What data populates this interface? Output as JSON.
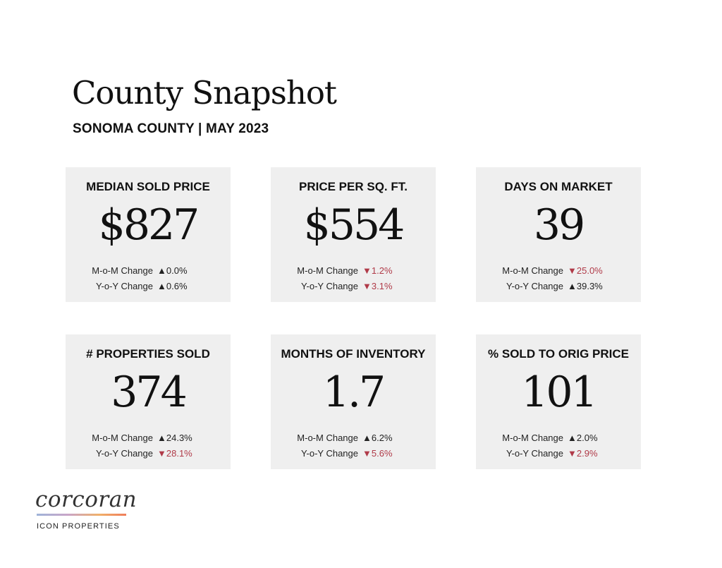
{
  "header": {
    "title": "County Snapshot",
    "subtitle": "SONOMA COUNTY | MAY 2023"
  },
  "cards": [
    {
      "label": "MEDIAN SOLD PRICE",
      "value": "$827",
      "mom_label": "M-o-M Change",
      "mom_value": "▲0.0%",
      "mom_direction": "up",
      "yoy_label": "Y-o-Y Change",
      "yoy_value": "▲0.6%",
      "yoy_direction": "up"
    },
    {
      "label": "PRICE PER SQ. FT.",
      "value": "$554",
      "mom_label": "M-o-M Change",
      "mom_value": "▼1.2%",
      "mom_direction": "down",
      "yoy_label": "Y-o-Y Change",
      "yoy_value": "▼3.1%",
      "yoy_direction": "down"
    },
    {
      "label": "DAYS ON MARKET",
      "value": "39",
      "mom_label": "M-o-M Change",
      "mom_value": "▼25.0%",
      "mom_direction": "down",
      "yoy_label": "Y-o-Y Change",
      "yoy_value": "▲39.3%",
      "yoy_direction": "up"
    },
    {
      "label": "# PROPERTIES SOLD",
      "value": "374",
      "mom_label": "M-o-M Change",
      "mom_value": "▲24.3%",
      "mom_direction": "up",
      "yoy_label": "Y-o-Y Change",
      "yoy_value": "▼28.1%",
      "yoy_direction": "down"
    },
    {
      "label": "MONTHS OF INVENTORY",
      "value": "1.7",
      "mom_label": "M-o-M Change",
      "mom_value": "▲6.2%",
      "mom_direction": "up",
      "yoy_label": "Y-o-Y Change",
      "yoy_value": "▼5.6%",
      "yoy_direction": "down"
    },
    {
      "label": "% SOLD TO ORIG PRICE",
      "value": "101",
      "mom_label": "M-o-M Change",
      "mom_value": "▲2.0%",
      "mom_direction": "up",
      "yoy_label": "Y-o-Y Change",
      "yoy_value": "▼2.9%",
      "yoy_direction": "down"
    }
  ],
  "colors": {
    "card_background": "#efefef",
    "decrease": "#b03a48",
    "increase": "#222222"
  },
  "logo": {
    "wordmark": "corcoran",
    "subtitle": "ICON PROPERTIES"
  }
}
